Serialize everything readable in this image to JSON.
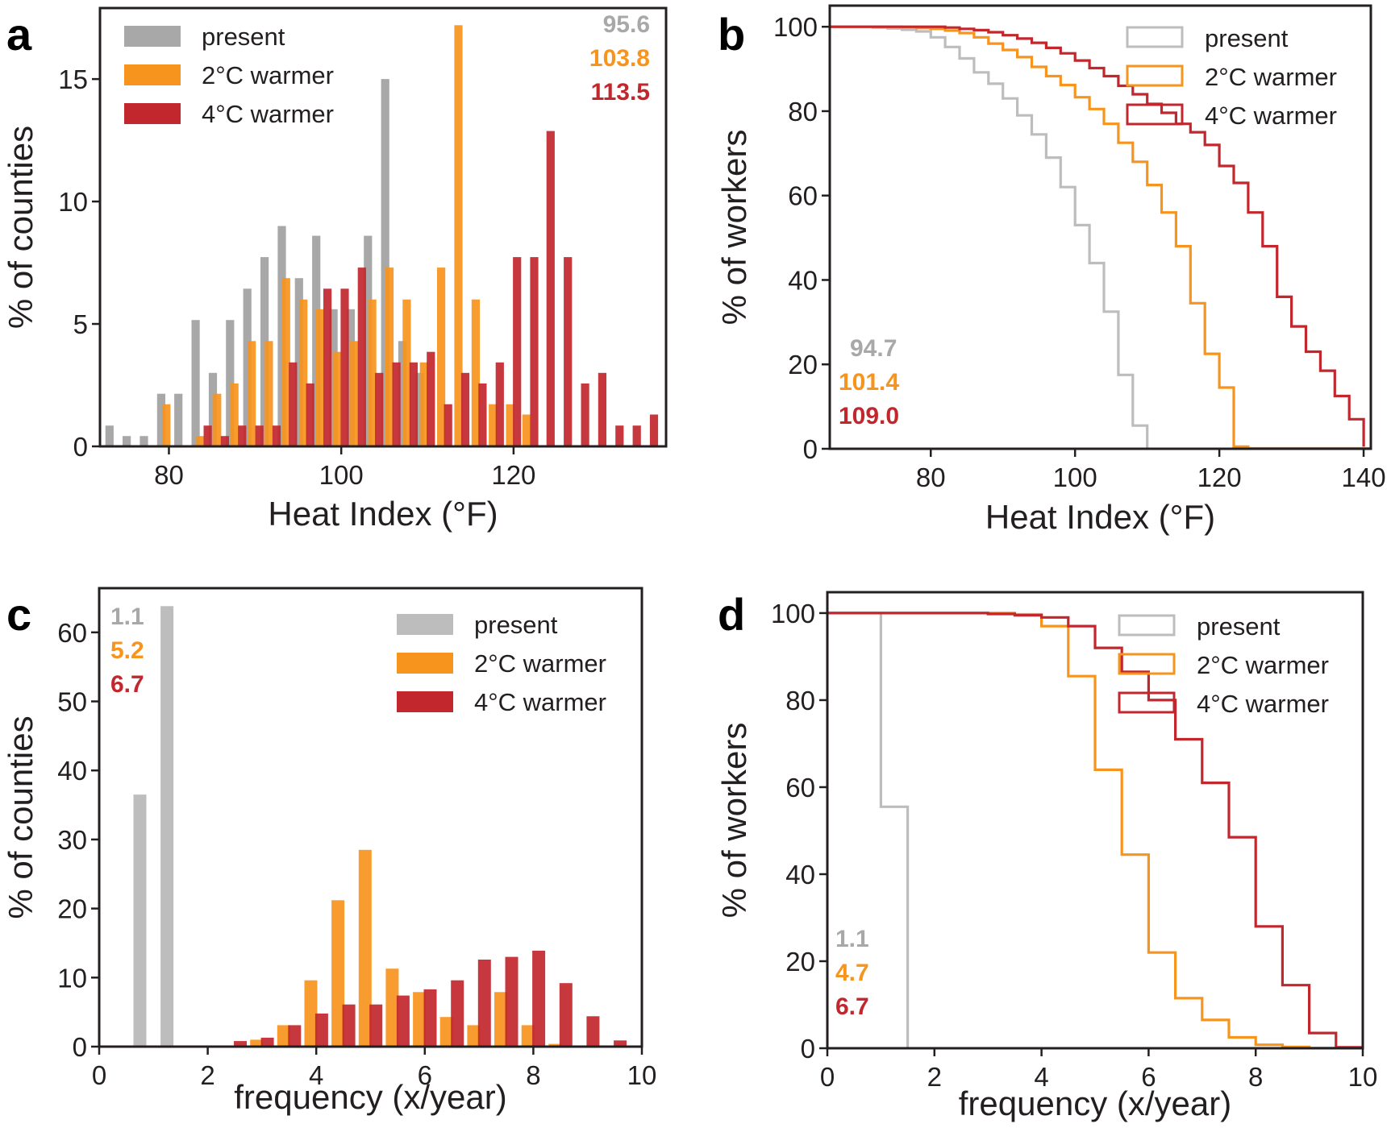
{
  "colors": {
    "present": "#a8a8a8",
    "present_light": "#bdbdbd",
    "warm2": "#f7941d",
    "warm4": "#c1272d",
    "axis": "#231f20"
  },
  "chart_data": [
    {
      "panel": "a",
      "type": "bar",
      "xlabel": "Heat Index (°F)",
      "ylabel": "% of counties",
      "xlim": [
        72,
        137.7
      ],
      "ylim": [
        0,
        17.9
      ],
      "xticks": [
        80,
        100,
        120
      ],
      "yticks": [
        0,
        5,
        10,
        15
      ],
      "legend": {
        "placement": "top-left",
        "entries": [
          "present",
          "2°C warmer",
          "4°C warmer"
        ]
      },
      "annotations": {
        "placement": "top-right",
        "values": [
          "95.6",
          "103.8",
          "113.5"
        ]
      },
      "series": [
        {
          "name": "present",
          "x": [
            73.1,
            75.1,
            77.1,
            79.1,
            81.1,
            83.1,
            85.1,
            87.1,
            89.1,
            91.1,
            93.1,
            95.1,
            97.1,
            99.1,
            101.1,
            103.1,
            105.1,
            107.1,
            109.1
          ],
          "values": [
            0.85,
            0.42,
            0.42,
            2.15,
            2.15,
            5.16,
            3.0,
            5.16,
            6.44,
            7.73,
            9.0,
            6.87,
            8.6,
            5.6,
            5.6,
            8.6,
            15.0,
            4.3,
            3.0
          ]
        },
        {
          "name": "2°C warmer",
          "x": [
            79.7,
            83.6,
            85.6,
            87.6,
            89.6,
            91.6,
            93.6,
            95.6,
            97.5,
            99.5,
            101.5,
            103.6,
            105.6,
            107.6,
            109.6,
            111.6,
            113.6,
            115.6,
            117.6,
            119.6,
            121.5
          ],
          "values": [
            1.72,
            0.42,
            2.15,
            2.57,
            4.3,
            4.3,
            6.87,
            6.0,
            5.6,
            3.86,
            4.3,
            6.0,
            7.3,
            6.0,
            3.43,
            7.3,
            17.2,
            6.0,
            1.72,
            1.72,
            1.3
          ]
        },
        {
          "name": "4°C warmer",
          "x": [
            84.5,
            86.5,
            88.5,
            90.5,
            92.5,
            94.4,
            96.4,
            98.4,
            100.4,
            102.4,
            104.4,
            106.4,
            108.4,
            110.4,
            112.4,
            114.4,
            116.4,
            118.4,
            120.4,
            122.4,
            124.3,
            126.3,
            128.3,
            130.3,
            132.3,
            134.3,
            136.3
          ],
          "values": [
            0.85,
            0.42,
            0.85,
            0.85,
            0.85,
            3.43,
            2.57,
            6.44,
            6.44,
            7.3,
            3.0,
            3.43,
            3.43,
            3.86,
            1.72,
            3.0,
            2.57,
            3.43,
            7.73,
            7.73,
            12.88,
            7.73,
            2.57,
            3.0,
            0.85,
            0.85,
            1.3
          ]
        }
      ]
    },
    {
      "panel": "b",
      "type": "line",
      "xlabel": "Heat Index (°F)",
      "ylabel": "% of workers",
      "xlim": [
        66,
        141
      ],
      "ylim": [
        0,
        105
      ],
      "xticks": [
        80,
        100,
        120,
        140
      ],
      "yticks": [
        0,
        20,
        40,
        60,
        80,
        100
      ],
      "legend": {
        "placement": "top-right",
        "entries": [
          "present",
          "2°C warmer",
          "4°C warmer"
        ]
      },
      "annotations": {
        "placement": "bottom-left",
        "values": [
          "94.7",
          "101.4",
          "109.0"
        ]
      },
      "series": [
        {
          "name": "present",
          "x": [
            66,
            70,
            72,
            74,
            76,
            78,
            80,
            82,
            84,
            86,
            88,
            90,
            92,
            94,
            96,
            98,
            100,
            102,
            104,
            106,
            108,
            110
          ],
          "values": [
            100,
            100,
            99.8,
            99.6,
            99.3,
            98.9,
            97.5,
            95.2,
            92.5,
            89.2,
            86.5,
            83,
            79,
            74.5,
            69,
            62,
            53,
            44,
            32.5,
            17.5,
            5.5,
            0
          ]
        },
        {
          "name": "2°C warmer",
          "x": [
            66,
            72,
            76,
            78,
            80,
            82,
            84,
            86,
            88,
            90,
            92,
            94,
            96,
            98,
            100,
            102,
            104,
            106,
            108,
            110,
            112,
            114,
            116,
            118,
            120,
            122,
            124,
            141
          ],
          "values": [
            100,
            100,
            99.9,
            99.7,
            99.5,
            99.1,
            98.5,
            97.5,
            96,
            94.5,
            92.8,
            90.5,
            88.3,
            86.2,
            83.3,
            80.5,
            77,
            72.5,
            68,
            62.5,
            56,
            48,
            34.5,
            22.5,
            14.5,
            0.5,
            0.1,
            0
          ]
        },
        {
          "name": "4°C warmer",
          "x": [
            66,
            78,
            82,
            84,
            86,
            88,
            90,
            92,
            94,
            96,
            98,
            100,
            102,
            104,
            106,
            108,
            110,
            112,
            114,
            116,
            118,
            120,
            122,
            124,
            126,
            128,
            130,
            132,
            134,
            136,
            138,
            140
          ],
          "values": [
            100,
            100,
            99.8,
            99.5,
            99.2,
            98.7,
            98,
            97.2,
            96.2,
            95,
            93.7,
            92,
            90.2,
            88.3,
            86,
            84,
            81.7,
            79.6,
            77,
            75,
            72,
            67,
            63,
            56,
            48,
            36,
            29,
            23,
            18.5,
            12.5,
            7,
            0.5
          ]
        }
      ]
    },
    {
      "panel": "c",
      "type": "bar",
      "xlabel": "frequency (x/year)",
      "ylabel": "% of counties",
      "xlim": [
        0,
        10
      ],
      "ylim": [
        0,
        66.4
      ],
      "xticks": [
        0,
        2,
        4,
        6,
        8,
        10
      ],
      "yticks": [
        0,
        10,
        20,
        30,
        40,
        50,
        60
      ],
      "legend": {
        "placement": "top-right",
        "entries": [
          "present",
          "2°C warmer",
          "4°C warmer"
        ]
      },
      "annotations": {
        "placement": "top-left",
        "values": [
          "1.1",
          "5.2",
          "6.7"
        ]
      },
      "series": [
        {
          "name": "present",
          "x": [
            0.75,
            1.25
          ],
          "values": [
            36.5,
            63.8
          ]
        },
        {
          "name": "2°C warmer",
          "x": [
            2.9,
            3.4,
            3.9,
            4.4,
            4.9,
            5.4,
            5.9,
            6.4,
            6.9,
            7.4,
            7.9,
            8.4
          ],
          "values": [
            1.0,
            3.1,
            9.6,
            21.2,
            28.5,
            11.3,
            7.9,
            4.3,
            3.1,
            7.9,
            3.1,
            0.4
          ]
        },
        {
          "name": "4°C warmer",
          "x": [
            2.6,
            3.1,
            3.6,
            4.1,
            4.6,
            5.1,
            5.6,
            6.1,
            6.6,
            7.1,
            7.6,
            8.1,
            8.6,
            9.1,
            9.6
          ],
          "values": [
            0.8,
            1.3,
            3.1,
            4.8,
            6.1,
            6.1,
            7.4,
            8.3,
            9.6,
            12.6,
            13.0,
            13.9,
            9.2,
            4.4,
            0.9
          ]
        }
      ]
    },
    {
      "panel": "d",
      "type": "line",
      "xlabel": "frequency (x/year)",
      "ylabel": "% of workers",
      "xlim": [
        0,
        10
      ],
      "ylim": [
        0,
        104.8
      ],
      "xticks": [
        0,
        2,
        4,
        6,
        8,
        10
      ],
      "yticks": [
        0,
        20,
        40,
        60,
        80,
        100
      ],
      "legend": {
        "placement": "top-right",
        "entries": [
          "present",
          "2°C warmer",
          "4°C warmer"
        ]
      },
      "annotations": {
        "placement": "bottom-left",
        "values": [
          "1.1",
          "4.7",
          "6.7"
        ]
      },
      "series": [
        {
          "name": "present",
          "x": [
            0,
            1.0,
            1.5
          ],
          "values": [
            100,
            55.5,
            0
          ]
        },
        {
          "name": "2°C warmer",
          "x": [
            0,
            3.5,
            4.0,
            4.5,
            5.0,
            5.5,
            6.0,
            6.5,
            7.0,
            7.5,
            8.0,
            8.5,
            9.0,
            10.0
          ],
          "values": [
            100,
            99.7,
            97,
            85.5,
            64,
            44.5,
            22,
            11.5,
            6.5,
            2.5,
            0.8,
            0.3,
            0.05,
            0
          ]
        },
        {
          "name": "4°C warmer",
          "x": [
            0,
            3.0,
            3.5,
            4.0,
            4.5,
            5.0,
            5.5,
            6.0,
            6.5,
            7.0,
            7.5,
            8.0,
            8.5,
            9.0,
            9.5,
            10.0
          ],
          "values": [
            100,
            99.8,
            99.5,
            99,
            97,
            92,
            86.5,
            80,
            71,
            61,
            48.5,
            28,
            14.5,
            3.5,
            0.2,
            0
          ]
        }
      ]
    }
  ]
}
